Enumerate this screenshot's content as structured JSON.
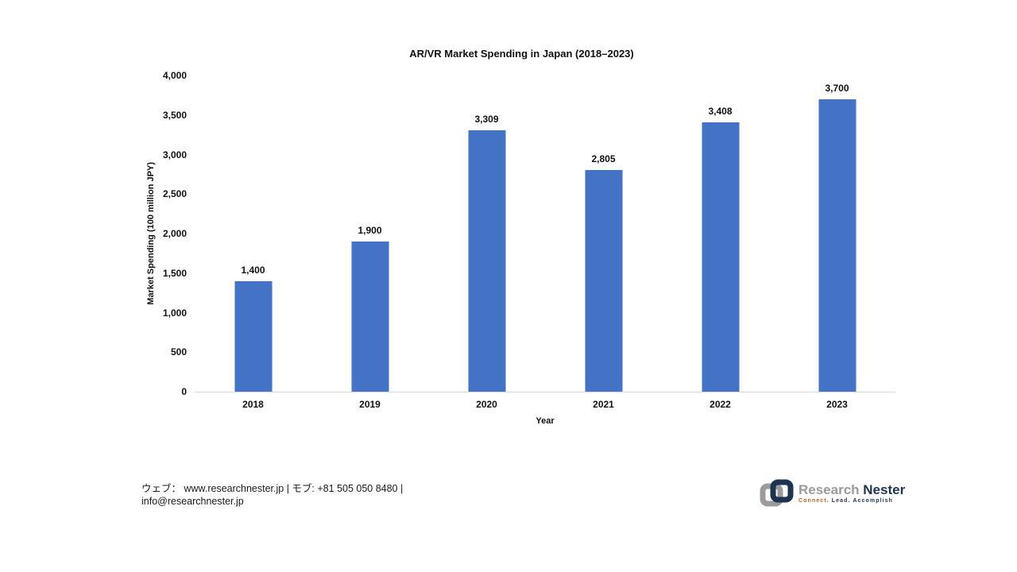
{
  "chart_data": {
    "type": "bar",
    "title": "AR/VR Market Spending in Japan (2018–2023)",
    "categories": [
      "2018",
      "2019",
      "2020",
      "2021",
      "2022",
      "2023"
    ],
    "values": [
      1400,
      1900,
      3309,
      2805,
      3408,
      3700
    ],
    "value_labels": [
      "1,400",
      "1,900",
      "3,309",
      "2,805",
      "3,408",
      "3,700"
    ],
    "xlabel": "Year",
    "ylabel": "Market Spending (100 million JPY)",
    "ylim": [
      0,
      4000
    ],
    "ytick_step": 500,
    "yticks": [
      "0",
      "500",
      "1,000",
      "1,500",
      "2,000",
      "2,500",
      "3,000",
      "3,500",
      "4,000"
    ],
    "bar_color": "#4472C4",
    "axis_line_color": "#d9d9d9",
    "grid": false,
    "legend": "none"
  },
  "footer": {
    "contact_line1": "ウェブ： www.researchnester.jp | モブ: +81 505 050 8480 |",
    "contact_line2": "info@researchnester.jp",
    "logo": {
      "name_part1": "Research ",
      "name_part2": "Nester",
      "tagline_part1": "Connect. ",
      "tagline_part2": "Lead. Accomplish",
      "gray": "#9b9b9b",
      "navy": "#1d3352",
      "orange": "#bf5b2d"
    }
  }
}
